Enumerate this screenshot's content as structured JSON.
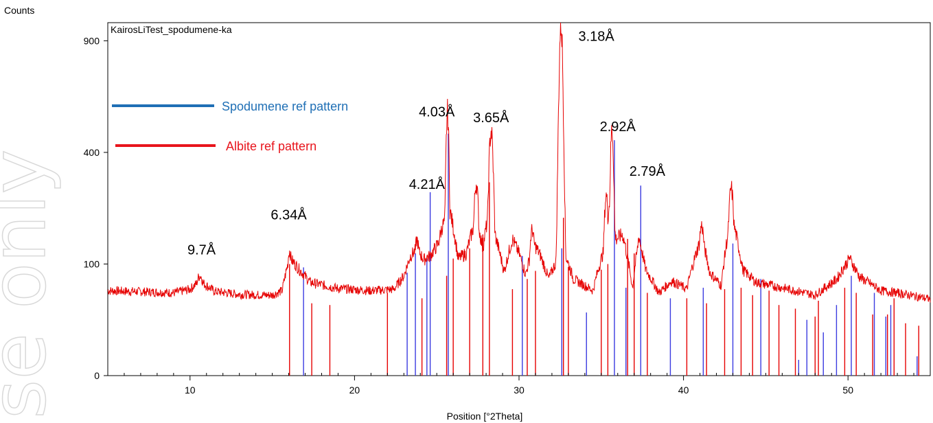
{
  "chart_data": {
    "type": "line",
    "title": "KairosLiTest_spodumene-ka",
    "xlabel": "Position [°2Theta]",
    "ylabel": "Counts",
    "xlim": [
      5,
      55
    ],
    "ylim": [
      0,
      1000
    ],
    "y_scale": "sqrt",
    "x_ticks": [
      10,
      20,
      30,
      40,
      50
    ],
    "y_ticks": [
      0,
      100,
      400,
      900
    ],
    "watermark": "se only",
    "legend": [
      {
        "name": "Spodumene ref pattern",
        "color": "#1f6fb5"
      },
      {
        "name": "Albite ref pattern",
        "color": "#e8141c"
      }
    ],
    "series": [
      {
        "name": "KairosLiTest_spodumene-ka",
        "color": "#e60000",
        "baseline": [
          [
            5,
            58
          ],
          [
            8,
            56
          ],
          [
            9,
            55
          ],
          [
            10,
            60
          ],
          [
            10.6,
            72
          ],
          [
            11.5,
            57
          ],
          [
            13,
            53
          ],
          [
            15,
            52
          ],
          [
            15.6,
            58
          ],
          [
            16.05,
            112
          ],
          [
            16.6,
            92
          ],
          [
            17.3,
            70
          ],
          [
            19,
            61
          ],
          [
            21,
            58
          ],
          [
            22.4,
            60
          ],
          [
            23,
            80
          ],
          [
            23.4,
            115
          ],
          [
            23.8,
            130
          ],
          [
            24.2,
            108
          ],
          [
            24.6,
            115
          ],
          [
            25.1,
            140
          ],
          [
            25.3,
            175
          ],
          [
            25.8,
            220
          ],
          [
            26.3,
            110
          ],
          [
            26.8,
            120
          ],
          [
            27.4,
            200
          ],
          [
            27.8,
            130
          ],
          [
            28.2,
            220
          ],
          [
            28.6,
            150
          ],
          [
            29.1,
            86
          ],
          [
            29.6,
            150
          ],
          [
            30,
            120
          ],
          [
            30.4,
            82
          ],
          [
            30.9,
            140
          ],
          [
            31.3,
            116
          ],
          [
            31.8,
            75
          ],
          [
            32.2,
            100
          ],
          [
            32.5,
            140
          ],
          [
            32.9,
            110
          ],
          [
            33.3,
            75
          ],
          [
            34.5,
            58
          ],
          [
            35.2,
            130
          ],
          [
            35.5,
            240
          ],
          [
            35.9,
            150
          ],
          [
            36.3,
            160
          ],
          [
            36.9,
            62
          ],
          [
            37.3,
            150
          ],
          [
            37.7,
            90
          ],
          [
            38.5,
            55
          ],
          [
            39.3,
            72
          ],
          [
            40.2,
            60
          ],
          [
            41.1,
            155
          ],
          [
            41.6,
            85
          ],
          [
            42.3,
            65
          ],
          [
            42.9,
            210
          ],
          [
            43.6,
            90
          ],
          [
            44.4,
            70
          ],
          [
            46,
            62
          ],
          [
            48,
            52
          ],
          [
            49.3,
            74
          ],
          [
            50.1,
            110
          ],
          [
            50.7,
            78
          ],
          [
            52,
            58
          ],
          [
            53,
            55
          ],
          [
            55,
            47
          ]
        ],
        "peaks": [
          {
            "x": 10.6,
            "y": 80,
            "w": 0.35
          },
          {
            "x": 16.05,
            "y": 125,
            "w": 0.16
          },
          {
            "x": 23.8,
            "y": 148,
            "w": 0.18
          },
          {
            "x": 24.4,
            "y": 115,
            "w": 0.15
          },
          {
            "x": 25.65,
            "y": 555,
            "w": 0.11
          },
          {
            "x": 27.4,
            "y": 298,
            "w": 0.16
          },
          {
            "x": 28.3,
            "y": 480,
            "w": 0.16
          },
          {
            "x": 29.6,
            "y": 150,
            "w": 0.14
          },
          {
            "x": 30.8,
            "y": 170,
            "w": 0.18
          },
          {
            "x": 32.55,
            "y": 1000,
            "w": 0.14
          },
          {
            "x": 35.3,
            "y": 260,
            "w": 0.14
          },
          {
            "x": 35.65,
            "y": 490,
            "w": 0.12
          },
          {
            "x": 36.4,
            "y": 145,
            "w": 0.16
          },
          {
            "x": 37.3,
            "y": 155,
            "w": 0.15
          },
          {
            "x": 41.1,
            "y": 180,
            "w": 0.2
          },
          {
            "x": 42.9,
            "y": 280,
            "w": 0.18
          },
          {
            "x": 50.1,
            "y": 112,
            "w": 0.2
          }
        ]
      }
    ],
    "reference_patterns": [
      {
        "name": "Spodumene ref pattern",
        "color": "#3a3ae0",
        "sticks": [
          [
            16.9,
            94
          ],
          [
            23.2,
            85
          ],
          [
            23.7,
            120
          ],
          [
            24.4,
            110
          ],
          [
            24.6,
            270
          ],
          [
            25.7,
            470
          ],
          [
            30.2,
            115
          ],
          [
            32.6,
            130
          ],
          [
            34.1,
            32
          ],
          [
            35.8,
            445
          ],
          [
            36.5,
            62
          ],
          [
            37.4,
            290
          ],
          [
            39.2,
            48
          ],
          [
            41.2,
            62
          ],
          [
            43.0,
            140
          ],
          [
            44.7,
            75
          ],
          [
            47.0,
            2
          ],
          [
            47.5,
            25
          ],
          [
            48.5,
            15
          ],
          [
            49.3,
            40
          ],
          [
            50.2,
            80
          ],
          [
            51.6,
            55
          ],
          [
            52.3,
            28
          ],
          [
            52.6,
            40
          ],
          [
            54.2,
            3
          ]
        ]
      },
      {
        "name": "Albite ref pattern",
        "color": "#e60000",
        "sticks": [
          [
            16.05,
            100
          ],
          [
            17.4,
            42
          ],
          [
            18.5,
            40
          ],
          [
            22.0,
            55
          ],
          [
            24.1,
            48
          ],
          [
            25.6,
            80
          ],
          [
            26.0,
            110
          ],
          [
            27.0,
            130
          ],
          [
            27.8,
            160
          ],
          [
            28.2,
            300
          ],
          [
            29.6,
            60
          ],
          [
            30.5,
            75
          ],
          [
            31.0,
            88
          ],
          [
            32.7,
            200
          ],
          [
            33.0,
            95
          ],
          [
            35.0,
            90
          ],
          [
            35.4,
            100
          ],
          [
            36.6,
            150
          ],
          [
            37.0,
            120
          ],
          [
            37.8,
            55
          ],
          [
            40.2,
            48
          ],
          [
            41.4,
            42
          ],
          [
            42.5,
            60
          ],
          [
            43.5,
            62
          ],
          [
            44.2,
            52
          ],
          [
            45.2,
            58
          ],
          [
            45.8,
            40
          ],
          [
            46.8,
            36
          ],
          [
            48.0,
            28
          ],
          [
            48.2,
            45
          ],
          [
            49.8,
            62
          ],
          [
            50.5,
            55
          ],
          [
            51.5,
            30
          ],
          [
            52.4,
            30
          ],
          [
            52.8,
            48
          ],
          [
            53.5,
            22
          ],
          [
            54.3,
            20
          ]
        ]
      }
    ],
    "annotations": [
      {
        "text": "9.7Å",
        "x": 10.7,
        "y": 118
      },
      {
        "text": "6.34Å",
        "x": 16.0,
        "y": 196
      },
      {
        "text": "4.21Å",
        "x": 24.4,
        "y": 280
      },
      {
        "text": "4.03Å",
        "x": 25.0,
        "y": 540
      },
      {
        "text": "3.65Å",
        "x": 28.3,
        "y": 515
      },
      {
        "text": "3.18Å",
        "x": 34.7,
        "y": 900
      },
      {
        "text": "2.92Å",
        "x": 36.0,
        "y": 480
      },
      {
        "text": "2.79Å",
        "x": 37.8,
        "y": 320
      }
    ]
  }
}
